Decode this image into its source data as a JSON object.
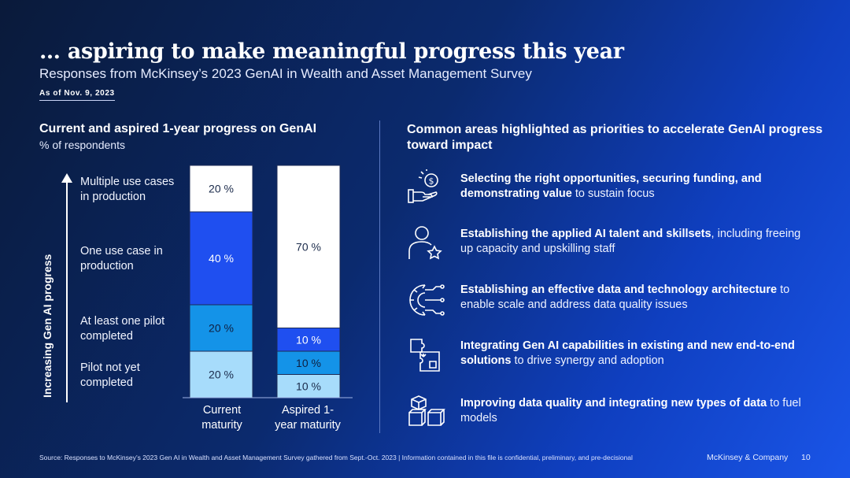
{
  "title": "… aspiring to make meaningful progress this year",
  "subtitle": "Responses from McKinsey’s 2023 GenAI in Wealth and Asset Management Survey",
  "as_of": "As of Nov. 9, 2023",
  "left_panel": {
    "title": "Current and aspired 1-year progress on GenAI",
    "subtitle": "% of respondents",
    "axis_label": "Increasing Gen AI progress"
  },
  "chart_data": {
    "type": "bar",
    "stacked": true,
    "title": "Current and aspired 1-year progress on GenAI",
    "ylabel": "Increasing Gen AI progress",
    "unit": "% of respondents",
    "categories": [
      "Current\nmaturity",
      "Aspired 1-\nyear maturity"
    ],
    "series": [
      {
        "name": "Pilot not yet\ncompleted",
        "values": [
          20,
          10
        ],
        "labels": [
          "20 %",
          "10 %"
        ],
        "color": "#a7dcfb",
        "text": "#1a2a4a"
      },
      {
        "name": "At least one pilot\ncompleted",
        "values": [
          20,
          10
        ],
        "labels": [
          "20 %",
          "10 %"
        ],
        "color": "#1493e8",
        "text": "#0f1f40"
      },
      {
        "name": "One use case in\nproduction",
        "values": [
          40,
          10
        ],
        "labels": [
          "40 %",
          "10 %"
        ],
        "color": "#1f4ff0",
        "text": "#ffffff"
      },
      {
        "name": "Multiple use cases\nin production",
        "values": [
          20,
          70
        ],
        "labels": [
          "20 %",
          "70 %"
        ],
        "color": "#ffffff",
        "text": "#1a2a4a"
      }
    ],
    "ylim": [
      0,
      100
    ]
  },
  "right_panel": {
    "title": "Common areas highlighted as priorities to accelerate GenAI progress toward impact",
    "items": [
      {
        "bold": "Selecting the right opportunities, securing funding, and demonstrating value",
        "rest": " to sustain focus",
        "icon": "hand-dollar-icon"
      },
      {
        "bold": "Establishing the applied AI talent and skillsets",
        "rest": ", including freeing up capacity and upskilling staff",
        "icon": "person-star-icon"
      },
      {
        "bold": "Establishing an effective data and technology architecture",
        "rest": " to enable scale and address data quality issues",
        "icon": "gear-circuit-icon"
      },
      {
        "bold": "Integrating Gen AI capabilities in existing and new end-to-end solutions",
        "rest": " to drive synergy and adoption",
        "icon": "puzzle-icon"
      },
      {
        "bold": "Improving data quality and integrating new types of data",
        "rest": " to fuel models",
        "icon": "cubes-icon"
      }
    ]
  },
  "footer": {
    "source": "Source: Responses to McKinsey’s 2023 Gen AI in Wealth and Asset Management Survey gathered from Sept.-Oct. 2023 | Information contained in this file is confidential, preliminary, and pre-decisional",
    "brand": "McKinsey & Company",
    "page": "10"
  }
}
